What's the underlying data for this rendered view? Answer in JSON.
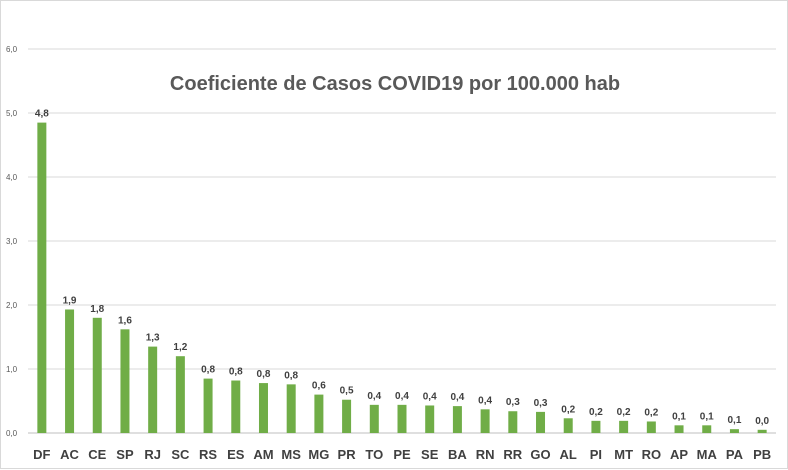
{
  "chart_data": {
    "type": "bar",
    "title": "Coeficiente de Casos COVID19 por 100.000 hab",
    "xlabel": "",
    "ylabel": "",
    "ylim": [
      0,
      6
    ],
    "yticks": [
      "0,0",
      "1,0",
      "2,0",
      "3,0",
      "4,0",
      "5,0",
      "6,0"
    ],
    "grid": true,
    "legend": "none",
    "bar_color": "#70ad47",
    "categories": [
      "DF",
      "AC",
      "CE",
      "SP",
      "RJ",
      "SC",
      "RS",
      "ES",
      "AM",
      "MS",
      "MG",
      "PR",
      "TO",
      "PE",
      "SE",
      "BA",
      "RN",
      "RR",
      "GO",
      "AL",
      "PI",
      "MT",
      "RO",
      "AP",
      "MA",
      "PA",
      "PB"
    ],
    "values": [
      4.85,
      1.93,
      1.8,
      1.62,
      1.35,
      1.2,
      0.85,
      0.82,
      0.78,
      0.76,
      0.6,
      0.52,
      0.44,
      0.44,
      0.43,
      0.42,
      0.37,
      0.34,
      0.33,
      0.23,
      0.19,
      0.19,
      0.18,
      0.12,
      0.12,
      0.06,
      0.05
    ],
    "data_labels": [
      "4,8",
      "1,9",
      "1,8",
      "1,6",
      "1,3",
      "1,2",
      "0,8",
      "0,8",
      "0,8",
      "0,8",
      "0,6",
      "0,5",
      "0,4",
      "0,4",
      "0,4",
      "0,4",
      "0,4",
      "0,3",
      "0,3",
      "0,2",
      "0,2",
      "0,2",
      "0,2",
      "0,1",
      "0,1",
      "0,1",
      "0,0"
    ]
  }
}
